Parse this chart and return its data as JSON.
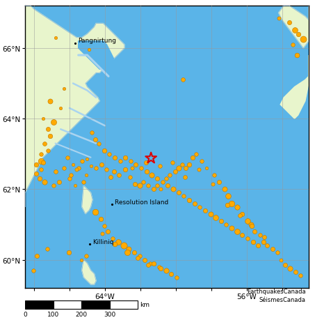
{
  "figsize": [
    4.53,
    4.6
  ],
  "dpi": 100,
  "ocean_color": "#5ab4e8",
  "land_color": "#e8f5cc",
  "coast_color": "#aad4f0",
  "coast_line_color": "#88bbdd",
  "grid_color": "#999999",
  "grid_alpha": 0.7,
  "xlim": [
    -68.5,
    -52.5
  ],
  "ylim": [
    59.2,
    67.2
  ],
  "xticks": [
    -68,
    -66,
    -64,
    -62,
    -60,
    -58,
    -56,
    -54
  ],
  "yticks": [
    60,
    62,
    64,
    66
  ],
  "xlabel_ticks": [
    -64,
    -56
  ],
  "map_border_color": "#000000",
  "credit_text": "EarthquakesCanada\nSéismesCanada",
  "scalebar_label": "km",
  "scalebar_ticks": [
    0,
    100,
    200,
    300
  ],
  "place_labels": [
    {
      "name": "Pangnirtung",
      "lon": -65.7,
      "lat": 66.14
    },
    {
      "name": "Resolution Island",
      "lon": -63.6,
      "lat": 61.57
    },
    {
      "name": "Killiniq",
      "lon": -64.85,
      "lat": 60.44
    }
  ],
  "star": {
    "lon": -61.4,
    "lat": 62.88,
    "color": "#dd0000",
    "size": 140
  },
  "earthquakes": [
    {
      "lon": -54.2,
      "lat": 66.85,
      "size": 14
    },
    {
      "lon": -53.6,
      "lat": 66.72,
      "size": 20
    },
    {
      "lon": -53.3,
      "lat": 66.52,
      "size": 32
    },
    {
      "lon": -53.1,
      "lat": 66.4,
      "size": 22
    },
    {
      "lon": -52.8,
      "lat": 66.25,
      "size": 42
    },
    {
      "lon": -53.4,
      "lat": 66.1,
      "size": 16
    },
    {
      "lon": -53.15,
      "lat": 65.8,
      "size": 24
    },
    {
      "lon": -66.8,
      "lat": 66.3,
      "size": 10
    },
    {
      "lon": -64.9,
      "lat": 65.95,
      "size": 10
    },
    {
      "lon": -59.6,
      "lat": 65.1,
      "size": 18
    },
    {
      "lon": -66.3,
      "lat": 64.85,
      "size": 10
    },
    {
      "lon": -67.1,
      "lat": 64.5,
      "size": 26
    },
    {
      "lon": -66.5,
      "lat": 64.3,
      "size": 10
    },
    {
      "lon": -67.5,
      "lat": 64.0,
      "size": 10
    },
    {
      "lon": -66.9,
      "lat": 63.9,
      "size": 34
    },
    {
      "lon": -67.2,
      "lat": 63.7,
      "size": 20
    },
    {
      "lon": -67.1,
      "lat": 63.5,
      "size": 22
    },
    {
      "lon": -67.4,
      "lat": 63.3,
      "size": 18
    },
    {
      "lon": -67.2,
      "lat": 63.1,
      "size": 16
    },
    {
      "lon": -67.6,
      "lat": 63.0,
      "size": 16
    },
    {
      "lon": -67.6,
      "lat": 62.8,
      "size": 38
    },
    {
      "lon": -67.9,
      "lat": 62.7,
      "size": 22
    },
    {
      "lon": -67.6,
      "lat": 62.55,
      "size": 16
    },
    {
      "lon": -67.9,
      "lat": 62.45,
      "size": 20
    },
    {
      "lon": -67.7,
      "lat": 62.3,
      "size": 22
    },
    {
      "lon": -67.4,
      "lat": 62.2,
      "size": 28
    },
    {
      "lon": -66.9,
      "lat": 62.1,
      "size": 16
    },
    {
      "lon": -66.6,
      "lat": 62.2,
      "size": 20
    },
    {
      "lon": -66.0,
      "lat": 62.3,
      "size": 16
    },
    {
      "lon": -65.9,
      "lat": 62.4,
      "size": 16
    },
    {
      "lon": -65.7,
      "lat": 62.1,
      "size": 10
    },
    {
      "lon": -65.2,
      "lat": 62.2,
      "size": 16
    },
    {
      "lon": -65.05,
      "lat": 62.4,
      "size": 10
    },
    {
      "lon": -66.3,
      "lat": 62.6,
      "size": 16
    },
    {
      "lon": -66.1,
      "lat": 62.9,
      "size": 16
    },
    {
      "lon": -65.8,
      "lat": 62.7,
      "size": 10
    },
    {
      "lon": -65.5,
      "lat": 62.6,
      "size": 16
    },
    {
      "lon": -65.3,
      "lat": 62.8,
      "size": 16
    },
    {
      "lon": -65.0,
      "lat": 62.85,
      "size": 10
    },
    {
      "lon": -64.8,
      "lat": 62.65,
      "size": 10
    },
    {
      "lon": -64.5,
      "lat": 62.6,
      "size": 16
    },
    {
      "lon": -64.2,
      "lat": 62.7,
      "size": 20
    },
    {
      "lon": -63.9,
      "lat": 62.55,
      "size": 16
    },
    {
      "lon": -63.5,
      "lat": 62.5,
      "size": 20
    },
    {
      "lon": -63.2,
      "lat": 62.4,
      "size": 18
    },
    {
      "lon": -62.85,
      "lat": 62.55,
      "size": 22
    },
    {
      "lon": -62.6,
      "lat": 62.35,
      "size": 16
    },
    {
      "lon": -62.3,
      "lat": 62.15,
      "size": 20
    },
    {
      "lon": -62.05,
      "lat": 62.1,
      "size": 28
    },
    {
      "lon": -61.85,
      "lat": 62.2,
      "size": 16
    },
    {
      "lon": -61.55,
      "lat": 62.1,
      "size": 16
    },
    {
      "lon": -61.25,
      "lat": 62.0,
      "size": 20
    },
    {
      "lon": -61.05,
      "lat": 62.1,
      "size": 16
    },
    {
      "lon": -60.85,
      "lat": 62.0,
      "size": 13
    },
    {
      "lon": -60.55,
      "lat": 62.3,
      "size": 16
    },
    {
      "lon": -60.35,
      "lat": 62.4,
      "size": 16
    },
    {
      "lon": -60.05,
      "lat": 62.5,
      "size": 20
    },
    {
      "lon": -59.85,
      "lat": 62.6,
      "size": 28
    },
    {
      "lon": -59.65,
      "lat": 62.7,
      "size": 16
    },
    {
      "lon": -59.45,
      "lat": 62.6,
      "size": 20
    },
    {
      "lon": -59.25,
      "lat": 62.7,
      "size": 22
    },
    {
      "lon": -59.05,
      "lat": 62.9,
      "size": 22
    },
    {
      "lon": -58.85,
      "lat": 63.0,
      "size": 16
    },
    {
      "lon": -58.55,
      "lat": 62.8,
      "size": 16
    },
    {
      "lon": -58.25,
      "lat": 62.6,
      "size": 10
    },
    {
      "lon": -57.85,
      "lat": 62.4,
      "size": 16
    },
    {
      "lon": -57.55,
      "lat": 62.2,
      "size": 20
    },
    {
      "lon": -57.25,
      "lat": 62.0,
      "size": 26
    },
    {
      "lon": -57.05,
      "lat": 61.8,
      "size": 32
    },
    {
      "lon": -56.85,
      "lat": 61.6,
      "size": 38
    },
    {
      "lon": -56.55,
      "lat": 61.5,
      "size": 28
    },
    {
      "lon": -56.25,
      "lat": 61.3,
      "size": 22
    },
    {
      "lon": -55.95,
      "lat": 61.1,
      "size": 32
    },
    {
      "lon": -55.75,
      "lat": 61.0,
      "size": 26
    },
    {
      "lon": -55.55,
      "lat": 60.8,
      "size": 20
    },
    {
      "lon": -55.25,
      "lat": 60.7,
      "size": 16
    },
    {
      "lon": -55.05,
      "lat": 60.5,
      "size": 22
    },
    {
      "lon": -54.85,
      "lat": 60.4,
      "size": 18
    },
    {
      "lon": -54.55,
      "lat": 60.3,
      "size": 20
    },
    {
      "lon": -54.25,
      "lat": 60.2,
      "size": 16
    },
    {
      "lon": -54.05,
      "lat": 60.0,
      "size": 13
    },
    {
      "lon": -53.85,
      "lat": 59.85,
      "size": 20
    },
    {
      "lon": -53.55,
      "lat": 59.75,
      "size": 28
    },
    {
      "lon": -53.25,
      "lat": 59.65,
      "size": 20
    },
    {
      "lon": -52.95,
      "lat": 59.55,
      "size": 16
    },
    {
      "lon": -64.55,
      "lat": 61.35,
      "size": 38
    },
    {
      "lon": -64.25,
      "lat": 61.15,
      "size": 22
    },
    {
      "lon": -64.05,
      "lat": 60.95,
      "size": 16
    },
    {
      "lon": -63.85,
      "lat": 60.8,
      "size": 20
    },
    {
      "lon": -63.55,
      "lat": 60.6,
      "size": 16
    },
    {
      "lon": -63.25,
      "lat": 60.5,
      "size": 32
    },
    {
      "lon": -62.95,
      "lat": 60.4,
      "size": 44
    },
    {
      "lon": -62.65,
      "lat": 60.3,
      "size": 26
    },
    {
      "lon": -62.35,
      "lat": 60.2,
      "size": 20
    },
    {
      "lon": -62.05,
      "lat": 60.1,
      "size": 16
    },
    {
      "lon": -61.75,
      "lat": 60.0,
      "size": 20
    },
    {
      "lon": -61.45,
      "lat": 59.9,
      "size": 16
    },
    {
      "lon": -61.25,
      "lat": 59.9,
      "size": 22
    },
    {
      "lon": -60.95,
      "lat": 59.8,
      "size": 16
    },
    {
      "lon": -60.55,
      "lat": 59.7,
      "size": 28
    },
    {
      "lon": -60.25,
      "lat": 59.6,
      "size": 20
    },
    {
      "lon": -59.95,
      "lat": 59.5,
      "size": 16
    },
    {
      "lon": -65.05,
      "lat": 60.1,
      "size": 16
    },
    {
      "lon": -65.35,
      "lat": 60.0,
      "size": 10
    },
    {
      "lon": -66.05,
      "lat": 60.2,
      "size": 22
    },
    {
      "lon": -67.25,
      "lat": 60.3,
      "size": 16
    },
    {
      "lon": -67.85,
      "lat": 60.1,
      "size": 20
    },
    {
      "lon": -68.05,
      "lat": 59.7,
      "size": 16
    },
    {
      "lon": -64.75,
      "lat": 63.6,
      "size": 16
    },
    {
      "lon": -64.55,
      "lat": 63.4,
      "size": 20
    },
    {
      "lon": -64.35,
      "lat": 63.3,
      "size": 16
    },
    {
      "lon": -64.05,
      "lat": 63.1,
      "size": 22
    },
    {
      "lon": -63.75,
      "lat": 63.0,
      "size": 16
    },
    {
      "lon": -63.45,
      "lat": 62.9,
      "size": 20
    },
    {
      "lon": -63.15,
      "lat": 62.8,
      "size": 16
    },
    {
      "lon": -62.85,
      "lat": 62.9,
      "size": 22
    },
    {
      "lon": -62.55,
      "lat": 62.8,
      "size": 16
    },
    {
      "lon": -62.25,
      "lat": 62.7,
      "size": 20
    },
    {
      "lon": -61.95,
      "lat": 62.6,
      "size": 16
    },
    {
      "lon": -61.65,
      "lat": 62.5,
      "size": 22
    },
    {
      "lon": -61.35,
      "lat": 62.4,
      "size": 28
    },
    {
      "lon": -61.05,
      "lat": 62.3,
      "size": 20
    },
    {
      "lon": -60.75,
      "lat": 62.2,
      "size": 16
    },
    {
      "lon": -60.45,
      "lat": 62.1,
      "size": 20
    },
    {
      "lon": -60.15,
      "lat": 62.0,
      "size": 26
    },
    {
      "lon": -59.85,
      "lat": 61.9,
      "size": 20
    },
    {
      "lon": -59.55,
      "lat": 61.8,
      "size": 16
    },
    {
      "lon": -59.25,
      "lat": 61.7,
      "size": 22
    },
    {
      "lon": -58.95,
      "lat": 61.6,
      "size": 20
    },
    {
      "lon": -58.65,
      "lat": 61.5,
      "size": 16
    },
    {
      "lon": -58.35,
      "lat": 61.4,
      "size": 20
    },
    {
      "lon": -58.05,
      "lat": 61.3,
      "size": 26
    },
    {
      "lon": -57.75,
      "lat": 61.2,
      "size": 32
    },
    {
      "lon": -57.45,
      "lat": 61.1,
      "size": 20
    },
    {
      "lon": -57.15,
      "lat": 61.0,
      "size": 16
    },
    {
      "lon": -56.85,
      "lat": 60.9,
      "size": 26
    },
    {
      "lon": -56.55,
      "lat": 60.8,
      "size": 32
    },
    {
      "lon": -56.25,
      "lat": 60.7,
      "size": 20
    },
    {
      "lon": -55.95,
      "lat": 60.6,
      "size": 16
    },
    {
      "lon": -55.65,
      "lat": 60.5,
      "size": 22
    },
    {
      "lon": -55.35,
      "lat": 60.4,
      "size": 20
    },
    {
      "lon": -67.5,
      "lat": 62.75,
      "size": 20
    },
    {
      "lon": -66.8,
      "lat": 62.5,
      "size": 18
    },
    {
      "lon": -65.6,
      "lat": 62.55,
      "size": 14
    },
    {
      "lon": -63.7,
      "lat": 62.35,
      "size": 18
    },
    {
      "lon": -62.45,
      "lat": 62.6,
      "size": 14
    },
    {
      "lon": -61.7,
      "lat": 62.75,
      "size": 20
    },
    {
      "lon": -60.9,
      "lat": 62.65,
      "size": 16
    },
    {
      "lon": -60.2,
      "lat": 62.75,
      "size": 16
    },
    {
      "lon": -59.5,
      "lat": 62.35,
      "size": 18
    },
    {
      "lon": -58.7,
      "lat": 62.55,
      "size": 14
    },
    {
      "lon": -57.9,
      "lat": 62.15,
      "size": 14
    },
    {
      "lon": -57.1,
      "lat": 61.55,
      "size": 22
    },
    {
      "lon": -56.4,
      "lat": 61.25,
      "size": 18
    },
    {
      "lon": -55.7,
      "lat": 60.95,
      "size": 22
    },
    {
      "lon": -55.0,
      "lat": 60.65,
      "size": 18
    },
    {
      "lon": -64.15,
      "lat": 60.75,
      "size": 14
    },
    {
      "lon": -63.45,
      "lat": 60.45,
      "size": 24
    },
    {
      "lon": -62.75,
      "lat": 60.2,
      "size": 34
    },
    {
      "lon": -62.15,
      "lat": 60.05,
      "size": 18
    },
    {
      "lon": -61.55,
      "lat": 59.85,
      "size": 18
    },
    {
      "lon": -60.85,
      "lat": 59.75,
      "size": 22
    }
  ],
  "eq_color": "#ffaa00",
  "eq_edge_color": "#bb7700",
  "eq_edge_width": 0.4
}
